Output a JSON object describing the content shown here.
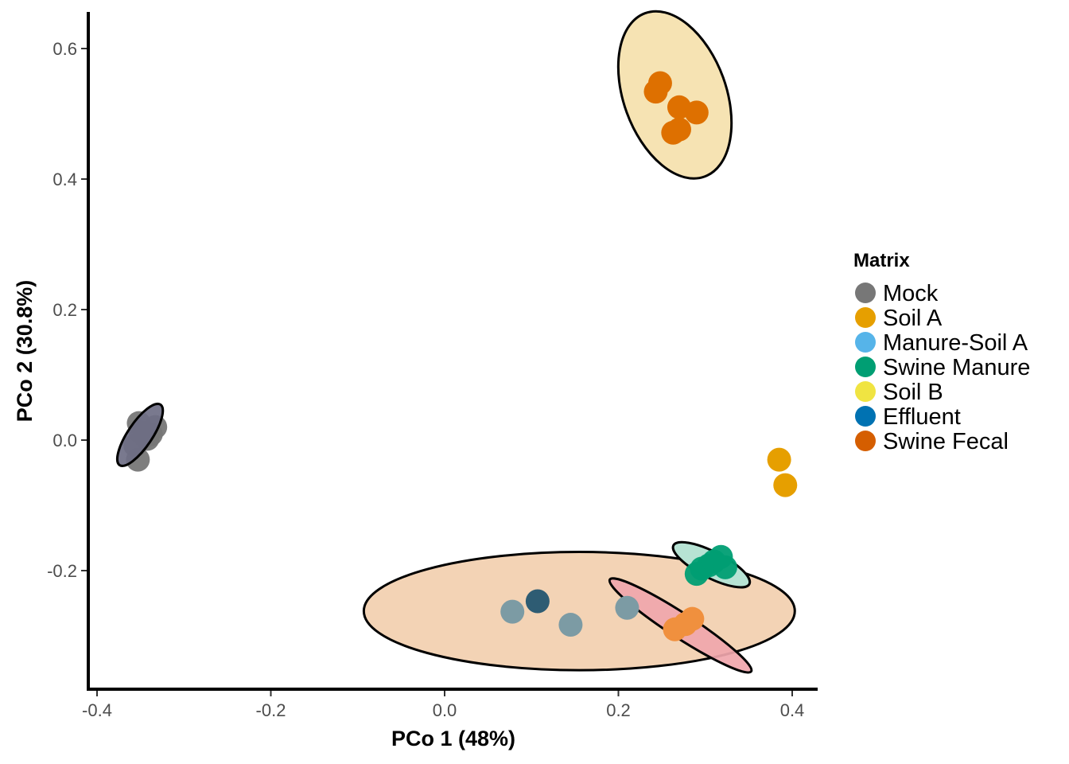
{
  "chart_data": {
    "type": "scatter",
    "xlabel": "PCo 1  (48%)",
    "ylabel": "PCo 2  (30.8%)",
    "xlim": [
      -0.415,
      0.43
    ],
    "ylim": [
      -0.38,
      0.655
    ],
    "x_ticks": [
      -0.4,
      -0.2,
      0.0,
      0.2,
      0.4
    ],
    "x_tick_labels": [
      "-0.4",
      "-0.2",
      "0.0",
      "0.2",
      "0.4"
    ],
    "y_ticks": [
      -0.2,
      0.0,
      0.2,
      0.4,
      0.6
    ],
    "y_tick_labels": [
      "-0.2",
      "0.0",
      "0.2",
      "0.4",
      "0.6"
    ],
    "grid": false,
    "legend": {
      "title": "Matrix",
      "placement": "right",
      "entries": [
        {
          "label": "Mock",
          "color": "#777777"
        },
        {
          "label": "Soil A",
          "color": "#E69F00"
        },
        {
          "label": "Manure-Soil A",
          "color": "#56B4E9"
        },
        {
          "label": "Swine Manure",
          "color": "#009E73"
        },
        {
          "label": "Soil B",
          "color": "#F0E442"
        },
        {
          "label": "Effluent",
          "color": "#0072B2"
        },
        {
          "label": "Swine Fecal",
          "color": "#D55E00"
        }
      ]
    },
    "ellipses": [
      {
        "group": "Effluent",
        "cx": 0.155,
        "cy": -0.262,
        "rx": 0.248,
        "ry": 0.068,
        "angle_deg": 0,
        "fill": "#F3D3B5",
        "opacity": 1.0
      },
      {
        "group": "Mock",
        "cx": -0.3505,
        "cy": 0.008,
        "rx": 0.042,
        "ry": 0.014,
        "angle_deg": 56,
        "fill": "#6E6E84",
        "opacity": 0.92
      },
      {
        "group": "Swine Fecal",
        "cx": 0.265,
        "cy": 0.529,
        "rx": 0.059,
        "ry": 0.1,
        "angle_deg": 20,
        "fill": "#F6E3B3",
        "opacity": 1.0
      },
      {
        "group": "Swine Manure",
        "cx": 0.307,
        "cy": -0.191,
        "rx": 0.049,
        "ry": 0.015,
        "angle_deg": -27,
        "fill": "#B7E3D4",
        "opacity": 1.0
      },
      {
        "group": "Manure-Soil A",
        "cx": 0.2715,
        "cy": -0.284,
        "rx": 0.097,
        "ry": 0.014,
        "angle_deg": -33,
        "fill": "#F0A6AD",
        "opacity": 0.92
      }
    ],
    "series": [
      {
        "name": "Mock",
        "color": "#777777",
        "opacity": 0.95,
        "points": [
          [
            -0.356,
            -0.008
          ],
          [
            -0.35,
            0.012
          ],
          [
            -0.345,
            0.006
          ],
          [
            -0.352,
            0.026
          ],
          [
            -0.342,
            0.002
          ],
          [
            -0.338,
            0.009
          ],
          [
            -0.333,
            0.02
          ],
          [
            -0.353,
            -0.03
          ]
        ]
      },
      {
        "name": "Soil A",
        "color": "#E69F00",
        "opacity": 1.0,
        "points": [
          [
            0.385,
            -0.03
          ],
          [
            0.392,
            -0.069
          ]
        ]
      },
      {
        "name": "Manure-Soil A",
        "color": "#F0903E",
        "opacity": 1.0,
        "points": [
          [
            0.265,
            -0.29
          ],
          [
            0.277,
            -0.282
          ],
          [
            0.285,
            -0.274
          ]
        ]
      },
      {
        "name": "Swine Manure",
        "color": "#009E73",
        "opacity": 0.95,
        "points": [
          [
            0.29,
            -0.205
          ],
          [
            0.296,
            -0.197
          ],
          [
            0.304,
            -0.192
          ],
          [
            0.31,
            -0.186
          ],
          [
            0.318,
            -0.179
          ],
          [
            0.323,
            -0.195
          ]
        ]
      },
      {
        "name": "Effluent",
        "color": "#7C9BA4",
        "opacity": 1.0,
        "points": [
          [
            0.078,
            -0.263
          ],
          [
            0.145,
            -0.283
          ],
          [
            0.21,
            -0.257
          ]
        ]
      },
      {
        "name": "Effluent-dark",
        "color": "#2E5C73",
        "opacity": 1.0,
        "points": [
          [
            0.107,
            -0.247
          ]
        ]
      },
      {
        "name": "Swine Fecal",
        "color": "#DE7000",
        "opacity": 1.0,
        "points": [
          [
            0.248,
            0.547
          ],
          [
            0.243,
            0.534
          ],
          [
            0.27,
            0.51
          ],
          [
            0.29,
            0.502
          ],
          [
            0.27,
            0.476
          ],
          [
            0.263,
            0.471
          ]
        ]
      }
    ]
  }
}
